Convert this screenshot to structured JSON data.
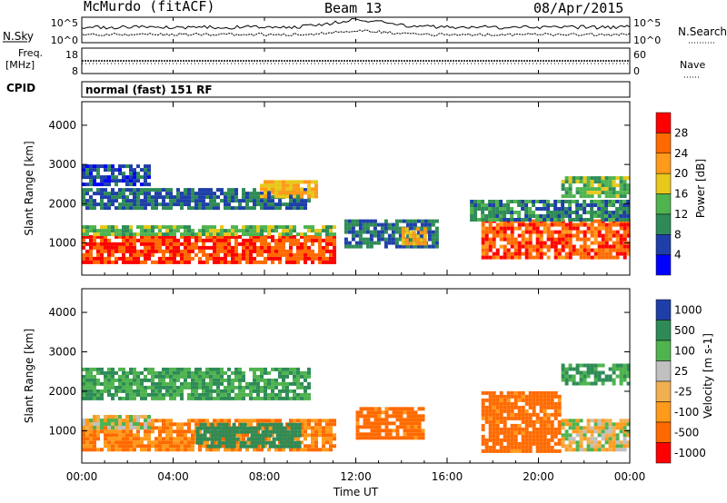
{
  "header": {
    "station": "McMurdo (fitACF)",
    "beam": "Beam 13",
    "date": "08/Apr/2015"
  },
  "top_panels": {
    "nsky_label": "N.Sky",
    "nsearch_label": "N.Search",
    "nsky_ticks": [
      "10^5",
      "10^0"
    ],
    "nsearch_ticks": [
      "10^5",
      "10^0"
    ],
    "freq_label_1": "Freq.",
    "freq_label_2": "[MHz]",
    "freq_ticks": [
      "18",
      "8"
    ],
    "nave_label": "Nave",
    "nave_ticks": [
      "60",
      "0"
    ],
    "cpid_label": "CPID",
    "cpid_text": "normal (fast) 151 RF"
  },
  "colors": {
    "power": [
      "#0000ff",
      "#1f3fa8",
      "#2e8b57",
      "#4fb34f",
      "#e8c81a",
      "#ff9a1a",
      "#ff6a00",
      "#ff0000"
    ],
    "velocity": [
      "#ff0000",
      "#ff6a00",
      "#ff9a1a",
      "#f0b050",
      "#c0c0c0",
      "#4fb34f",
      "#2e8b57",
      "#1f3fa8"
    ]
  },
  "chart_data": [
    {
      "type": "heatmap",
      "name": "power",
      "xlabel": "Time UT",
      "ylabel": "Slant Range [km]",
      "xlim": [
        0,
        24
      ],
      "ylim": [
        180,
        4600
      ],
      "x_ticks": [
        "00:00",
        "04:00",
        "08:00",
        "12:00",
        "16:00",
        "20:00",
        "00:00"
      ],
      "y_ticks": [
        "1000",
        "2000",
        "3000",
        "4000"
      ],
      "colorbar": {
        "label": "Power [dB]",
        "ticks": [
          "4",
          "8",
          "12",
          "16",
          "20",
          "24",
          "28"
        ],
        "range": [
          0,
          32
        ]
      },
      "regions": [
        {
          "t0": 0.0,
          "t1": 11.0,
          "r0": 500,
          "r1": 1200,
          "value": 28
        },
        {
          "t0": 0.0,
          "t1": 11.0,
          "r0": 1200,
          "r1": 1450,
          "value": 14
        },
        {
          "t0": 0.0,
          "t1": 10.0,
          "r0": 1900,
          "r1": 2400,
          "value": 8
        },
        {
          "t0": 0.0,
          "t1": 3.0,
          "r0": 2500,
          "r1": 3000,
          "value": 6
        },
        {
          "t0": 7.8,
          "t1": 10.2,
          "r0": 2200,
          "r1": 2600,
          "value": 20
        },
        {
          "t0": 11.5,
          "t1": 15.5,
          "r0": 900,
          "r1": 1600,
          "value": 8
        },
        {
          "t0": 14.0,
          "t1": 15.0,
          "r0": 1000,
          "r1": 1400,
          "value": 20
        },
        {
          "t0": 17.5,
          "t1": 24.0,
          "r0": 600,
          "r1": 1600,
          "value": 27
        },
        {
          "t0": 17.0,
          "t1": 24.0,
          "r0": 1600,
          "r1": 2100,
          "value": 10
        },
        {
          "t0": 21.0,
          "t1": 24.0,
          "r0": 2200,
          "r1": 2700,
          "value": 14
        }
      ]
    },
    {
      "type": "heatmap",
      "name": "velocity",
      "xlabel": "Time UT",
      "ylabel": "Slant Range [km]",
      "xlim": [
        0,
        24
      ],
      "ylim": [
        180,
        4600
      ],
      "x_ticks": [
        "00:00",
        "04:00",
        "08:00",
        "12:00",
        "16:00",
        "20:00",
        "00:00"
      ],
      "y_ticks": [
        "1000",
        "2000",
        "3000",
        "4000"
      ],
      "colorbar": {
        "label": "Velocity [m s-1]",
        "ticks": [
          "1000",
          "500",
          "100",
          "25",
          "-25",
          "-100",
          "-500",
          "-1000"
        ]
      },
      "regions": [
        {
          "t0": 0.0,
          "t1": 11.0,
          "r0": 500,
          "r1": 1300,
          "value": -100
        },
        {
          "t0": 5.0,
          "t1": 9.5,
          "r0": 600,
          "r1": 1200,
          "value": 200
        },
        {
          "t0": 0.0,
          "t1": 3.0,
          "r0": 1100,
          "r1": 1400,
          "value": 0
        },
        {
          "t0": 0.0,
          "t1": 10.0,
          "r0": 1800,
          "r1": 2600,
          "value": 100
        },
        {
          "t0": 12.0,
          "t1": 15.0,
          "r0": 800,
          "r1": 1600,
          "value": -150
        },
        {
          "t0": 17.5,
          "t1": 21.0,
          "r0": 500,
          "r1": 2000,
          "value": -150
        },
        {
          "t0": 21.0,
          "t1": 24.0,
          "r0": 500,
          "r1": 1300,
          "value": 0
        },
        {
          "t0": 21.0,
          "t1": 24.0,
          "r0": 2200,
          "r1": 2700,
          "value": 100
        }
      ]
    }
  ]
}
